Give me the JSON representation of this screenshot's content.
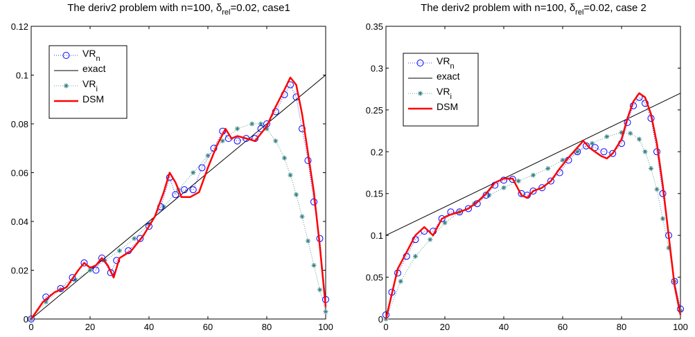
{
  "colors": {
    "vrn": "#0000ff",
    "exact": "#000000",
    "vri": "#2f7f7f",
    "dsm": "#ff0000"
  },
  "chart_data": [
    {
      "type": "line",
      "title_parts": [
        "The deriv2 problem with n=100, ",
        "δ",
        "rel",
        "=0.02, case1"
      ],
      "xlim": [
        0,
        100
      ],
      "ylim": [
        0,
        0.12
      ],
      "xticks": [
        0,
        20,
        40,
        60,
        80,
        100
      ],
      "yticks": [
        0,
        0.02,
        0.04,
        0.06,
        0.08,
        0.1,
        0.12
      ],
      "xtick_labels": [
        "0",
        "20",
        "40",
        "60",
        "80",
        "100"
      ],
      "ytick_labels": [
        "0",
        "0.02",
        "0.04",
        "0.06",
        "0.08",
        "0.1",
        "0.12"
      ],
      "legend_position": "top-left",
      "legend": [
        {
          "base": "VR",
          "sub": "n",
          "key": "vrn"
        },
        {
          "base": "exact",
          "sub": "",
          "key": "exact"
        },
        {
          "base": "VR",
          "sub": "i",
          "key": "vri"
        },
        {
          "base": "DSM",
          "sub": "",
          "key": "dsm"
        }
      ],
      "series": {
        "exact": {
          "x": [
            0,
            100
          ],
          "y": [
            0,
            0.1
          ]
        },
        "vrn": {
          "x": [
            0,
            5,
            10,
            14,
            18,
            22,
            24,
            27,
            29,
            33,
            37,
            40,
            44,
            47,
            49,
            52,
            55,
            58,
            62,
            65,
            67,
            70,
            73,
            76,
            78,
            80,
            83,
            86,
            88,
            90,
            92,
            94,
            96,
            98,
            100
          ],
          "y": [
            0.0,
            0.009,
            0.0125,
            0.017,
            0.023,
            0.02,
            0.025,
            0.019,
            0.024,
            0.028,
            0.033,
            0.038,
            0.046,
            0.058,
            0.051,
            0.053,
            0.053,
            0.062,
            0.07,
            0.077,
            0.074,
            0.073,
            0.074,
            0.074,
            0.078,
            0.08,
            0.085,
            0.092,
            0.096,
            0.091,
            0.078,
            0.065,
            0.048,
            0.033,
            0.008
          ]
        },
        "vri": {
          "x": [
            0,
            5,
            10,
            15,
            20,
            25,
            30,
            35,
            40,
            45,
            50,
            55,
            60,
            65,
            70,
            75,
            78,
            80,
            83,
            86,
            88,
            90,
            92,
            94,
            96,
            98,
            100
          ],
          "y": [
            0.0,
            0.007,
            0.012,
            0.016,
            0.02,
            0.024,
            0.028,
            0.033,
            0.039,
            0.046,
            0.053,
            0.06,
            0.067,
            0.073,
            0.078,
            0.08,
            0.08,
            0.078,
            0.073,
            0.066,
            0.059,
            0.051,
            0.042,
            0.032,
            0.022,
            0.012,
            0.003
          ]
        },
        "dsm": {
          "x": [
            0,
            4,
            8,
            12,
            16,
            18,
            20,
            22,
            24,
            26,
            28,
            30,
            34,
            38,
            42,
            45,
            47,
            49,
            51,
            54,
            57,
            60,
            63,
            66,
            68,
            70,
            73,
            76,
            78,
            80,
            83,
            86,
            88,
            90,
            92,
            94,
            96,
            98,
            100
          ],
          "y": [
            0.0,
            0.007,
            0.011,
            0.013,
            0.02,
            0.023,
            0.021,
            0.022,
            0.025,
            0.022,
            0.017,
            0.025,
            0.028,
            0.034,
            0.042,
            0.052,
            0.06,
            0.056,
            0.05,
            0.05,
            0.052,
            0.062,
            0.071,
            0.078,
            0.074,
            0.075,
            0.074,
            0.073,
            0.076,
            0.079,
            0.087,
            0.094,
            0.099,
            0.096,
            0.084,
            0.068,
            0.052,
            0.03,
            0.005
          ]
        }
      }
    },
    {
      "type": "line",
      "title_parts": [
        "The deriv2 problem with n=100, ",
        "δ",
        "rel",
        "=0.02, case 2"
      ],
      "xlim": [
        0,
        100
      ],
      "ylim": [
        0,
        0.35
      ],
      "xticks": [
        0,
        20,
        40,
        60,
        80,
        100
      ],
      "yticks": [
        0,
        0.05,
        0.1,
        0.15,
        0.2,
        0.25,
        0.3,
        0.35
      ],
      "xtick_labels": [
        "0",
        "20",
        "40",
        "60",
        "80",
        "100"
      ],
      "ytick_labels": [
        "0",
        "0.05",
        "0.1",
        "0.15",
        "0.2",
        "0.25",
        "0.3",
        "0.35"
      ],
      "legend_position": "top-left",
      "legend": [
        {
          "base": "VR",
          "sub": "n",
          "key": "vrn"
        },
        {
          "base": "exact",
          "sub": "",
          "key": "exact"
        },
        {
          "base": "VR",
          "sub": "i",
          "key": "vri"
        },
        {
          "base": "DSM",
          "sub": "",
          "key": "dsm"
        }
      ],
      "series": {
        "exact": {
          "x": [
            0,
            100
          ],
          "y": [
            0.1,
            0.27
          ]
        },
        "vrn": {
          "x": [
            0,
            2,
            4,
            7,
            10,
            13,
            16,
            19,
            22,
            25,
            28,
            31,
            34,
            37,
            40,
            43,
            46,
            48,
            50,
            53,
            56,
            59,
            62,
            65,
            68,
            71,
            74,
            77,
            80,
            82,
            84,
            86,
            88,
            90,
            92,
            94,
            96,
            98,
            100
          ],
          "y": [
            0.005,
            0.032,
            0.055,
            0.075,
            0.095,
            0.105,
            0.105,
            0.12,
            0.128,
            0.128,
            0.132,
            0.138,
            0.148,
            0.16,
            0.166,
            0.167,
            0.15,
            0.148,
            0.153,
            0.157,
            0.165,
            0.175,
            0.19,
            0.2,
            0.207,
            0.205,
            0.2,
            0.198,
            0.21,
            0.235,
            0.255,
            0.265,
            0.258,
            0.24,
            0.2,
            0.15,
            0.1,
            0.045,
            0.012
          ]
        },
        "vri": {
          "x": [
            0,
            5,
            10,
            15,
            20,
            25,
            30,
            35,
            40,
            45,
            50,
            55,
            60,
            65,
            70,
            75,
            80,
            83,
            86,
            88,
            90,
            92,
            94,
            96,
            98,
            100
          ],
          "y": [
            0.0,
            0.045,
            0.075,
            0.095,
            0.115,
            0.128,
            0.138,
            0.148,
            0.157,
            0.165,
            0.172,
            0.18,
            0.19,
            0.2,
            0.21,
            0.218,
            0.223,
            0.222,
            0.215,
            0.2,
            0.18,
            0.155,
            0.12,
            0.085,
            0.045,
            0.01
          ]
        },
        "dsm": {
          "x": [
            0,
            2,
            4,
            7,
            10,
            13,
            16,
            19,
            22,
            25,
            28,
            31,
            34,
            37,
            40,
            43,
            46,
            48,
            50,
            53,
            56,
            59,
            62,
            65,
            67,
            69,
            71,
            73,
            75,
            77,
            80,
            82,
            84,
            86,
            88,
            90,
            92,
            94,
            96,
            98,
            100
          ],
          "y": [
            0.0,
            0.03,
            0.06,
            0.08,
            0.1,
            0.11,
            0.1,
            0.12,
            0.125,
            0.128,
            0.132,
            0.14,
            0.15,
            0.163,
            0.168,
            0.168,
            0.148,
            0.145,
            0.153,
            0.157,
            0.165,
            0.18,
            0.193,
            0.205,
            0.213,
            0.205,
            0.2,
            0.195,
            0.192,
            0.198,
            0.215,
            0.24,
            0.26,
            0.27,
            0.265,
            0.245,
            0.21,
            0.16,
            0.1,
            0.04,
            0.005
          ]
        }
      }
    }
  ]
}
